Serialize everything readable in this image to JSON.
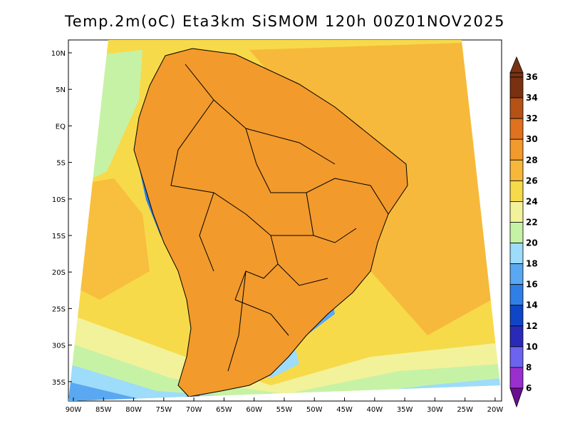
{
  "title": "Temp.2m(oC) Eta3km SiSMOM 120h 00Z01NOV2025",
  "map": {
    "lat_labels": [
      "10N",
      "5N",
      "EQ",
      "5S",
      "10S",
      "15S",
      "20S",
      "25S",
      "30S",
      "35S"
    ],
    "lon_labels": [
      "90W",
      "85W",
      "80W",
      "75W",
      "70W",
      "65W",
      "60W",
      "55W",
      "50W",
      "45W",
      "40W",
      "35W",
      "30W",
      "25W",
      "20W"
    ],
    "lat_range_deg": [
      -38,
      11
    ],
    "lon_range_deg": [
      -91,
      -20
    ]
  },
  "colorbar": {
    "labels": [
      "6",
      "8",
      "10",
      "12",
      "14",
      "16",
      "18",
      "20",
      "22",
      "24",
      "26",
      "28",
      "30",
      "32",
      "34",
      "36"
    ],
    "colors": [
      "#6a0f91",
      "#9a2fd0",
      "#6c63f0",
      "#2a2ab8",
      "#0f46c8",
      "#2f7fe6",
      "#5aa8f2",
      "#9ddcfa",
      "#c6f2a6",
      "#f2f29a",
      "#f7da4a",
      "#f7b73a",
      "#f29a2c",
      "#e0711e",
      "#b55216",
      "#7a3112"
    ]
  }
}
